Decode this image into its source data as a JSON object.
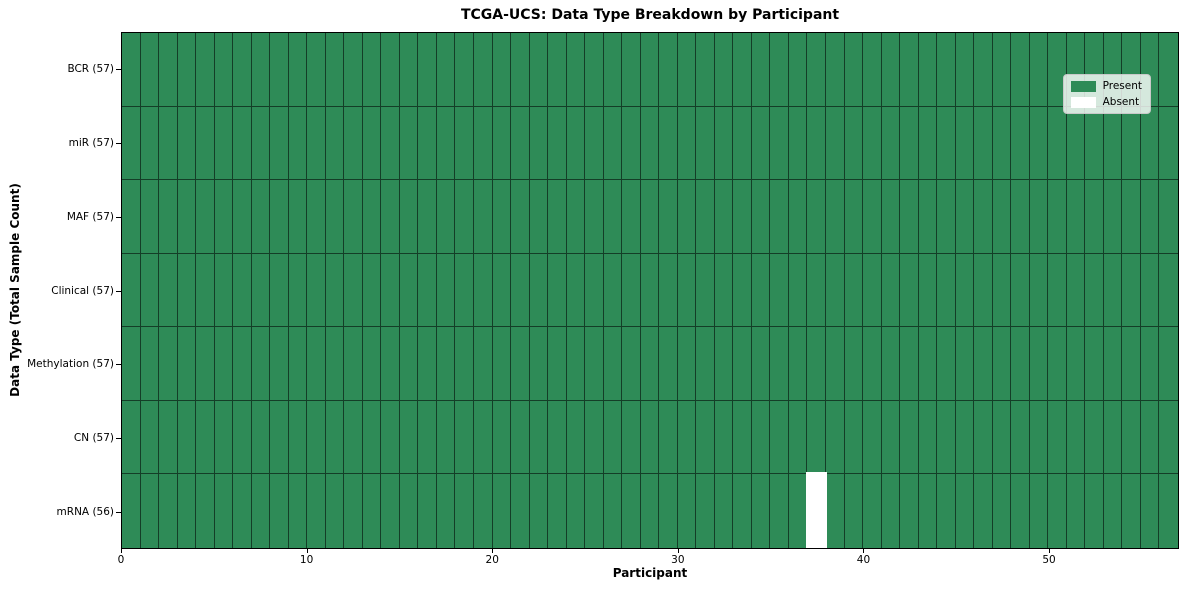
{
  "chart_data": {
    "type": "heatmap",
    "title": "TCGA-UCS: Data Type Breakdown by Participant",
    "xlabel": "Participant",
    "ylabel": "Data Type (Total Sample Count)",
    "x_range": [
      0,
      57
    ],
    "x_ticks": [
      0,
      10,
      20,
      30,
      40,
      50
    ],
    "n_participants": 57,
    "grid_on": false,
    "legend_position": "upper right",
    "present_color": "#2E8B57",
    "absent_color": "#FFFFFF",
    "legend": [
      {
        "label": "Present",
        "color": "#2E8B57"
      },
      {
        "label": "Absent",
        "color": "#FFFFFF"
      }
    ],
    "rows": [
      {
        "label": "BCR (57)",
        "data_type": "BCR",
        "sample_count": 57,
        "absent_participants": []
      },
      {
        "label": "miR (57)",
        "data_type": "miR",
        "sample_count": 57,
        "absent_participants": []
      },
      {
        "label": "MAF (57)",
        "data_type": "MAF",
        "sample_count": 57,
        "absent_participants": []
      },
      {
        "label": "Clinical (57)",
        "data_type": "Clinical",
        "sample_count": 57,
        "absent_participants": []
      },
      {
        "label": "Methylation (57)",
        "data_type": "Methylation",
        "sample_count": 57,
        "absent_participants": []
      },
      {
        "label": "CN (57)",
        "data_type": "CN",
        "sample_count": 57,
        "absent_participants": []
      },
      {
        "label": "mRNA (56)",
        "data_type": "mRNA",
        "sample_count": 56,
        "absent_participants": [
          37
        ]
      }
    ]
  }
}
